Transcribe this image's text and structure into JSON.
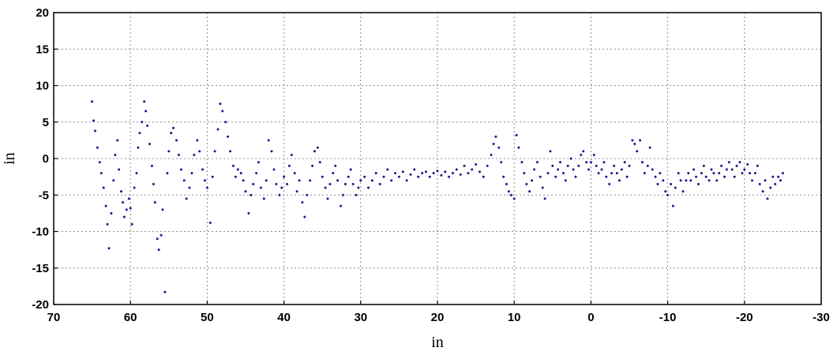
{
  "chart_data": {
    "type": "scatter",
    "title": "",
    "xlabel": "in",
    "ylabel": "in",
    "xlim": [
      70,
      -30
    ],
    "ylim": [
      -20,
      20
    ],
    "x_reversed": true,
    "xticks": [
      70,
      60,
      50,
      40,
      30,
      20,
      10,
      0,
      -10,
      -20,
      -30
    ],
    "yticks": [
      20,
      15,
      10,
      5,
      0,
      -5,
      -10,
      -15,
      -20
    ],
    "xtick_labels": [
      "70",
      "60",
      "50",
      "40",
      "30",
      "20",
      "10",
      "0",
      "-10",
      "-20",
      "-30"
    ],
    "ytick_labels": [
      "20",
      "15",
      "10",
      "5",
      "0",
      "-5",
      "-10",
      "-15",
      "-20"
    ],
    "grid": true,
    "marker_color": "#1a1a8c",
    "series": [
      {
        "points": [
          [
            65.0,
            7.8
          ],
          [
            64.8,
            5.2
          ],
          [
            64.6,
            3.8
          ],
          [
            64.3,
            1.5
          ],
          [
            64.0,
            -0.5
          ],
          [
            63.8,
            -2.0
          ],
          [
            63.5,
            -4.0
          ],
          [
            63.2,
            -6.5
          ],
          [
            63.0,
            -9.0
          ],
          [
            62.8,
            -12.3
          ],
          [
            62.5,
            -7.5
          ],
          [
            62.2,
            -3.0
          ],
          [
            62.0,
            0.5
          ],
          [
            61.7,
            2.5
          ],
          [
            61.5,
            -1.5
          ],
          [
            61.2,
            -4.5
          ],
          [
            61.0,
            -6.0
          ],
          [
            60.8,
            -8.0
          ],
          [
            60.5,
            -7.0
          ],
          [
            60.2,
            -5.5
          ],
          [
            60.0,
            -6.8
          ],
          [
            59.8,
            -9.0
          ],
          [
            59.5,
            -4.0
          ],
          [
            59.2,
            -2.0
          ],
          [
            59.0,
            1.5
          ],
          [
            58.8,
            3.5
          ],
          [
            58.5,
            5.0
          ],
          [
            58.2,
            7.8
          ],
          [
            58.0,
            6.5
          ],
          [
            57.8,
            4.5
          ],
          [
            57.5,
            2.0
          ],
          [
            57.2,
            -1.0
          ],
          [
            57.0,
            -3.5
          ],
          [
            56.8,
            -6.0
          ],
          [
            56.5,
            -11.0
          ],
          [
            56.3,
            -12.5
          ],
          [
            56.0,
            -10.5
          ],
          [
            55.8,
            -7.0
          ],
          [
            55.5,
            -18.3
          ],
          [
            55.2,
            -2.0
          ],
          [
            55.0,
            1.0
          ],
          [
            54.7,
            3.5
          ],
          [
            54.4,
            4.2
          ],
          [
            54.0,
            2.5
          ],
          [
            53.7,
            0.5
          ],
          [
            53.4,
            -1.5
          ],
          [
            53.0,
            -3.0
          ],
          [
            52.7,
            -5.5
          ],
          [
            52.3,
            -4.0
          ],
          [
            52.0,
            -2.0
          ],
          [
            51.7,
            0.5
          ],
          [
            51.3,
            2.5
          ],
          [
            51.0,
            1.0
          ],
          [
            50.6,
            -1.5
          ],
          [
            50.3,
            -3.0
          ],
          [
            50.0,
            -4.0
          ],
          [
            49.6,
            -8.8
          ],
          [
            49.3,
            -2.5
          ],
          [
            49.0,
            1.0
          ],
          [
            48.6,
            4.0
          ],
          [
            48.3,
            7.5
          ],
          [
            48.0,
            6.5
          ],
          [
            47.6,
            5.0
          ],
          [
            47.3,
            3.0
          ],
          [
            47.0,
            1.0
          ],
          [
            46.6,
            -1.0
          ],
          [
            46.3,
            -2.5
          ],
          [
            46.0,
            -1.5
          ],
          [
            45.6,
            -2.0
          ],
          [
            45.3,
            -3.0
          ],
          [
            45.0,
            -4.5
          ],
          [
            44.6,
            -7.5
          ],
          [
            44.3,
            -5.0
          ],
          [
            44.0,
            -3.5
          ],
          [
            43.6,
            -2.0
          ],
          [
            43.3,
            -0.5
          ],
          [
            43.0,
            -4.0
          ],
          [
            42.6,
            -5.5
          ],
          [
            42.3,
            -3.0
          ],
          [
            42.0,
            2.5
          ],
          [
            41.6,
            1.0
          ],
          [
            41.3,
            -1.5
          ],
          [
            41.0,
            -3.5
          ],
          [
            40.6,
            -5.0
          ],
          [
            40.3,
            -4.0
          ],
          [
            40.0,
            -2.5
          ],
          [
            39.6,
            -3.5
          ],
          [
            39.3,
            -1.0
          ],
          [
            39.0,
            0.5
          ],
          [
            38.6,
            -2.0
          ],
          [
            38.3,
            -4.5
          ],
          [
            38.0,
            -3.0
          ],
          [
            37.6,
            -6.0
          ],
          [
            37.3,
            -8.0
          ],
          [
            37.0,
            -5.0
          ],
          [
            36.6,
            -3.0
          ],
          [
            36.3,
            -1.0
          ],
          [
            36.0,
            1.0
          ],
          [
            35.6,
            1.5
          ],
          [
            35.3,
            -0.5
          ],
          [
            35.0,
            -2.5
          ],
          [
            34.6,
            -4.0
          ],
          [
            34.3,
            -5.5
          ],
          [
            34.0,
            -3.5
          ],
          [
            33.6,
            -2.0
          ],
          [
            33.3,
            -1.0
          ],
          [
            33.0,
            -3.0
          ],
          [
            32.6,
            -6.5
          ],
          [
            32.3,
            -5.0
          ],
          [
            32.0,
            -3.5
          ],
          [
            31.6,
            -2.5
          ],
          [
            31.3,
            -1.5
          ],
          [
            31.0,
            -3.5
          ],
          [
            30.6,
            -5.0
          ],
          [
            30.3,
            -4.0
          ],
          [
            30.0,
            -3.0
          ],
          [
            29.5,
            -2.5
          ],
          [
            29.0,
            -4.0
          ],
          [
            28.5,
            -3.0
          ],
          [
            28.0,
            -2.0
          ],
          [
            27.5,
            -3.5
          ],
          [
            27.0,
            -2.5
          ],
          [
            26.5,
            -1.5
          ],
          [
            26.0,
            -3.0
          ],
          [
            25.5,
            -2.0
          ],
          [
            25.0,
            -2.5
          ],
          [
            24.5,
            -1.8
          ],
          [
            24.0,
            -3.0
          ],
          [
            23.5,
            -2.2
          ],
          [
            23.0,
            -1.5
          ],
          [
            22.5,
            -2.5
          ],
          [
            22.0,
            -2.0
          ],
          [
            21.5,
            -1.8
          ],
          [
            21.0,
            -2.5
          ],
          [
            20.5,
            -2.0
          ],
          [
            20.0,
            -1.7
          ],
          [
            19.5,
            -2.3
          ],
          [
            19.0,
            -1.8
          ],
          [
            18.5,
            -2.5
          ],
          [
            18.0,
            -2.0
          ],
          [
            17.5,
            -1.5
          ],
          [
            17.0,
            -2.2
          ],
          [
            16.5,
            -1.0
          ],
          [
            16.0,
            -2.0
          ],
          [
            15.5,
            -1.5
          ],
          [
            15.0,
            -0.8
          ],
          [
            14.5,
            -1.8
          ],
          [
            14.0,
            -2.5
          ],
          [
            13.5,
            -1.0
          ],
          [
            13.0,
            0.5
          ],
          [
            12.7,
            2.0
          ],
          [
            12.4,
            3.0
          ],
          [
            12.0,
            1.5
          ],
          [
            11.7,
            -0.5
          ],
          [
            11.4,
            -2.5
          ],
          [
            11.0,
            -3.5
          ],
          [
            10.7,
            -4.5
          ],
          [
            10.4,
            -5.0
          ],
          [
            10.0,
            -5.5
          ],
          [
            9.7,
            3.2
          ],
          [
            9.4,
            1.5
          ],
          [
            9.0,
            -0.5
          ],
          [
            8.7,
            -2.0
          ],
          [
            8.4,
            -3.5
          ],
          [
            8.0,
            -4.5
          ],
          [
            7.7,
            -3.0
          ],
          [
            7.4,
            -1.5
          ],
          [
            7.0,
            -0.5
          ],
          [
            6.6,
            -2.5
          ],
          [
            6.3,
            -4.0
          ],
          [
            6.0,
            -5.5
          ],
          [
            5.6,
            -2.0
          ],
          [
            5.3,
            1.0
          ],
          [
            5.0,
            -1.0
          ],
          [
            4.6,
            -2.5
          ],
          [
            4.3,
            -1.5
          ],
          [
            4.0,
            -0.5
          ],
          [
            3.6,
            -2.0
          ],
          [
            3.3,
            -3.0
          ],
          [
            3.0,
            -1.0
          ],
          [
            2.6,
            0.0
          ],
          [
            2.3,
            -1.5
          ],
          [
            2.0,
            -2.5
          ],
          [
            1.6,
            -1.0
          ],
          [
            1.3,
            0.5
          ],
          [
            1.0,
            1.0
          ],
          [
            0.6,
            -0.5
          ],
          [
            0.3,
            -1.5
          ],
          [
            0.0,
            -0.5
          ],
          [
            -0.4,
            0.5
          ],
          [
            -0.7,
            -1.0
          ],
          [
            -1.0,
            -2.0
          ],
          [
            -1.4,
            -1.5
          ],
          [
            -1.7,
            -0.5
          ],
          [
            -2.0,
            -2.5
          ],
          [
            -2.4,
            -3.5
          ],
          [
            -2.7,
            -2.0
          ],
          [
            -3.0,
            -1.0
          ],
          [
            -3.4,
            -2.0
          ],
          [
            -3.7,
            -3.0
          ],
          [
            -4.0,
            -1.5
          ],
          [
            -4.4,
            -0.5
          ],
          [
            -4.7,
            -2.5
          ],
          [
            -5.0,
            -1.0
          ],
          [
            -5.4,
            2.5
          ],
          [
            -5.7,
            2.0
          ],
          [
            -6.0,
            1.0
          ],
          [
            -6.4,
            2.5
          ],
          [
            -6.7,
            -0.5
          ],
          [
            -7.0,
            -2.0
          ],
          [
            -7.4,
            -1.0
          ],
          [
            -7.7,
            1.5
          ],
          [
            -8.0,
            -1.5
          ],
          [
            -8.4,
            -2.5
          ],
          [
            -8.7,
            -3.5
          ],
          [
            -9.0,
            -2.0
          ],
          [
            -9.4,
            -3.0
          ],
          [
            -9.7,
            -4.5
          ],
          [
            -10.0,
            -5.0
          ],
          [
            -10.4,
            -3.5
          ],
          [
            -10.7,
            -6.5
          ],
          [
            -11.0,
            -4.0
          ],
          [
            -11.4,
            -2.0
          ],
          [
            -11.7,
            -3.0
          ],
          [
            -12.0,
            -4.5
          ],
          [
            -12.4,
            -3.0
          ],
          [
            -12.7,
            -2.0
          ],
          [
            -13.0,
            -3.0
          ],
          [
            -13.4,
            -1.5
          ],
          [
            -13.7,
            -2.5
          ],
          [
            -14.0,
            -3.5
          ],
          [
            -14.4,
            -2.0
          ],
          [
            -14.7,
            -1.0
          ],
          [
            -15.0,
            -2.5
          ],
          [
            -15.4,
            -3.0
          ],
          [
            -15.7,
            -1.5
          ],
          [
            -16.0,
            -2.0
          ],
          [
            -16.4,
            -3.0
          ],
          [
            -16.7,
            -2.0
          ],
          [
            -17.0,
            -1.0
          ],
          [
            -17.4,
            -2.5
          ],
          [
            -17.7,
            -1.5
          ],
          [
            -18.0,
            -0.5
          ],
          [
            -18.4,
            -1.5
          ],
          [
            -18.7,
            -2.5
          ],
          [
            -19.0,
            -1.0
          ],
          [
            -19.4,
            -0.5
          ],
          [
            -19.7,
            -2.0
          ],
          [
            -20.0,
            -1.5
          ],
          [
            -20.4,
            -0.8
          ],
          [
            -20.7,
            -2.0
          ],
          [
            -21.0,
            -3.0
          ],
          [
            -21.4,
            -2.0
          ],
          [
            -21.7,
            -1.0
          ],
          [
            -22.0,
            -3.5
          ],
          [
            -22.4,
            -4.5
          ],
          [
            -22.7,
            -3.0
          ],
          [
            -23.0,
            -5.5
          ],
          [
            -23.4,
            -4.0
          ],
          [
            -23.7,
            -2.5
          ],
          [
            -24.0,
            -3.5
          ],
          [
            -24.4,
            -2.5
          ],
          [
            -24.7,
            -3.0
          ],
          [
            -25.0,
            -2.0
          ]
        ]
      }
    ]
  }
}
